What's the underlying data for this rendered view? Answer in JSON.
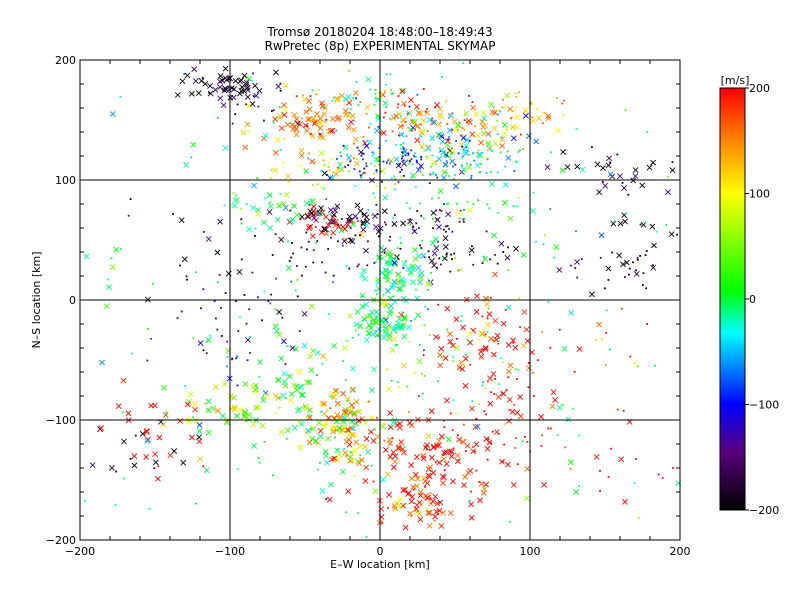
{
  "chart_data": {
    "type": "scatter",
    "title": "Tromsø 20180204 18:48:00–18:49:43",
    "subtitle": "RwPretec (8p) EXPERIMENTAL SKYMAP",
    "xlabel": "E–W location [km]",
    "ylabel": "N–S location [km]",
    "xlim": [
      -200,
      200
    ],
    "ylim": [
      -200,
      200
    ],
    "x_ticks": [
      -200,
      -100,
      0,
      100,
      200
    ],
    "y_ticks": [
      -200,
      -100,
      0,
      100,
      200
    ],
    "grid_lines": [
      -100,
      0,
      100
    ],
    "grid": true,
    "colorbar": {
      "label": "[m/s]",
      "min": -200,
      "max": 200,
      "ticks": [
        200,
        100,
        0,
        -100,
        -200
      ],
      "gradient": [
        "#000000",
        "#5a0080",
        "#0000ff",
        "#00ffff",
        "#00ff00",
        "#ffff00",
        "#ff8000",
        "#ff0000"
      ]
    },
    "clusters": [
      {
        "x": -105,
        "y": 178,
        "sx": 14,
        "sy": 7,
        "v": -195,
        "n": 55,
        "symbol": "x"
      },
      {
        "x": -80,
        "y": 160,
        "sx": 18,
        "sy": 12,
        "v": -200,
        "n": 12,
        "symbol": "dot"
      },
      {
        "x": -45,
        "y": 148,
        "sx": 22,
        "sy": 14,
        "v": 150,
        "n": 90,
        "symbol": "x"
      },
      {
        "x": -10,
        "y": 165,
        "sx": 18,
        "sy": 10,
        "v": 10,
        "n": 40,
        "symbol": "dot"
      },
      {
        "x": 30,
        "y": 150,
        "sx": 20,
        "sy": 10,
        "v": 180,
        "n": 60,
        "symbol": "dot"
      },
      {
        "x": 65,
        "y": 145,
        "sx": 22,
        "sy": 10,
        "v": 120,
        "n": 60,
        "symbol": "x"
      },
      {
        "x": 95,
        "y": 160,
        "sx": 12,
        "sy": 8,
        "v": 110,
        "n": 30,
        "symbol": "dot"
      },
      {
        "x": 55,
        "y": 135,
        "sx": 25,
        "sy": 10,
        "v": -30,
        "n": 40,
        "symbol": "x"
      },
      {
        "x": 20,
        "y": 118,
        "sx": 28,
        "sy": 10,
        "v": -60,
        "n": 120,
        "symbol": "dot"
      },
      {
        "x": 10,
        "y": 112,
        "sx": 25,
        "sy": 8,
        "v": -160,
        "n": 30,
        "symbol": "dot"
      },
      {
        "x": 60,
        "y": 115,
        "sx": 20,
        "sy": 10,
        "v": 20,
        "n": 40,
        "symbol": "dot"
      },
      {
        "x": -30,
        "y": 110,
        "sx": 25,
        "sy": 8,
        "v": 90,
        "n": 40,
        "symbol": "dot"
      },
      {
        "x": 170,
        "y": 105,
        "sx": 15,
        "sy": 10,
        "v": -200,
        "n": 20,
        "symbol": "x"
      },
      {
        "x": 130,
        "y": 115,
        "sx": 12,
        "sy": 8,
        "v": -200,
        "n": 8,
        "symbol": "x"
      },
      {
        "x": -35,
        "y": 65,
        "sx": 12,
        "sy": 8,
        "v": 200,
        "n": 35,
        "symbol": "x"
      },
      {
        "x": -25,
        "y": 68,
        "sx": 20,
        "sy": 6,
        "v": -190,
        "n": 40,
        "symbol": "x"
      },
      {
        "x": -70,
        "y": 78,
        "sx": 15,
        "sy": 8,
        "v": 10,
        "n": 30,
        "symbol": "x"
      },
      {
        "x": 20,
        "y": 65,
        "sx": 25,
        "sy": 8,
        "v": -150,
        "n": 40,
        "symbol": "dot"
      },
      {
        "x": 60,
        "y": 75,
        "sx": 25,
        "sy": 8,
        "v": 20,
        "n": 25,
        "symbol": "dot"
      },
      {
        "x": 50,
        "y": 38,
        "sx": 22,
        "sy": 10,
        "v": -190,
        "n": 40,
        "symbol": "dot"
      },
      {
        "x": -30,
        "y": 40,
        "sx": 22,
        "sy": 10,
        "v": -195,
        "n": 40,
        "symbol": "dot"
      },
      {
        "x": 160,
        "y": 25,
        "sx": 20,
        "sy": 12,
        "v": -200,
        "n": 30,
        "symbol": "dot"
      },
      {
        "x": 170,
        "y": 55,
        "sx": 18,
        "sy": 10,
        "v": -200,
        "n": 12,
        "symbol": "x"
      },
      {
        "x": 10,
        "y": 15,
        "sx": 10,
        "sy": 18,
        "v": 0,
        "n": 90,
        "symbol": "x"
      },
      {
        "x": 0,
        "y": -20,
        "sx": 8,
        "sy": 8,
        "v": 10,
        "n": 70,
        "symbol": "x"
      },
      {
        "x": -90,
        "y": -30,
        "sx": 25,
        "sy": 25,
        "v": -120,
        "n": 40,
        "symbol": "dot"
      },
      {
        "x": 70,
        "y": -40,
        "sx": 18,
        "sy": 25,
        "v": 200,
        "n": 70,
        "symbol": "x"
      },
      {
        "x": 40,
        "y": -50,
        "sx": 30,
        "sy": 30,
        "v": 60,
        "n": 50,
        "symbol": "dot"
      },
      {
        "x": -60,
        "y": -70,
        "sx": 30,
        "sy": 20,
        "v": 30,
        "n": 60,
        "symbol": "x"
      },
      {
        "x": -25,
        "y": -105,
        "sx": 10,
        "sy": 18,
        "v": 120,
        "n": 80,
        "symbol": "x"
      },
      {
        "x": -30,
        "y": -110,
        "sx": 15,
        "sy": 15,
        "v": 20,
        "n": 40,
        "symbol": "x"
      },
      {
        "x": -90,
        "y": -95,
        "sx": 20,
        "sy": 12,
        "v": 60,
        "n": 50,
        "symbol": "x"
      },
      {
        "x": 30,
        "y": -130,
        "sx": 25,
        "sy": 20,
        "v": 200,
        "n": 120,
        "symbol": "x"
      },
      {
        "x": 20,
        "y": -175,
        "sx": 15,
        "sy": 10,
        "v": 170,
        "n": 50,
        "symbol": "x"
      },
      {
        "x": 80,
        "y": -100,
        "sx": 25,
        "sy": 20,
        "v": 200,
        "n": 50,
        "symbol": "dot"
      },
      {
        "x": -160,
        "y": -130,
        "sx": 25,
        "sy": 15,
        "v": -200,
        "n": 15,
        "symbol": "x"
      },
      {
        "x": -140,
        "y": -110,
        "sx": 20,
        "sy": 20,
        "v": 200,
        "n": 25,
        "symbol": "x"
      },
      {
        "x": 130,
        "y": -140,
        "sx": 30,
        "sy": 20,
        "v": 200,
        "n": 20,
        "symbol": "dot"
      },
      {
        "x": 130,
        "y": -50,
        "sx": 30,
        "sy": 30,
        "v": 190,
        "n": 20,
        "symbol": "dot"
      },
      {
        "x": -120,
        "y": 20,
        "sx": 20,
        "sy": 30,
        "v": -200,
        "n": 25,
        "symbol": "dot"
      },
      {
        "x": 0,
        "y": 0,
        "sx": 110,
        "sy": 110,
        "v": 0,
        "n": 250,
        "symbol": "dot"
      }
    ]
  }
}
